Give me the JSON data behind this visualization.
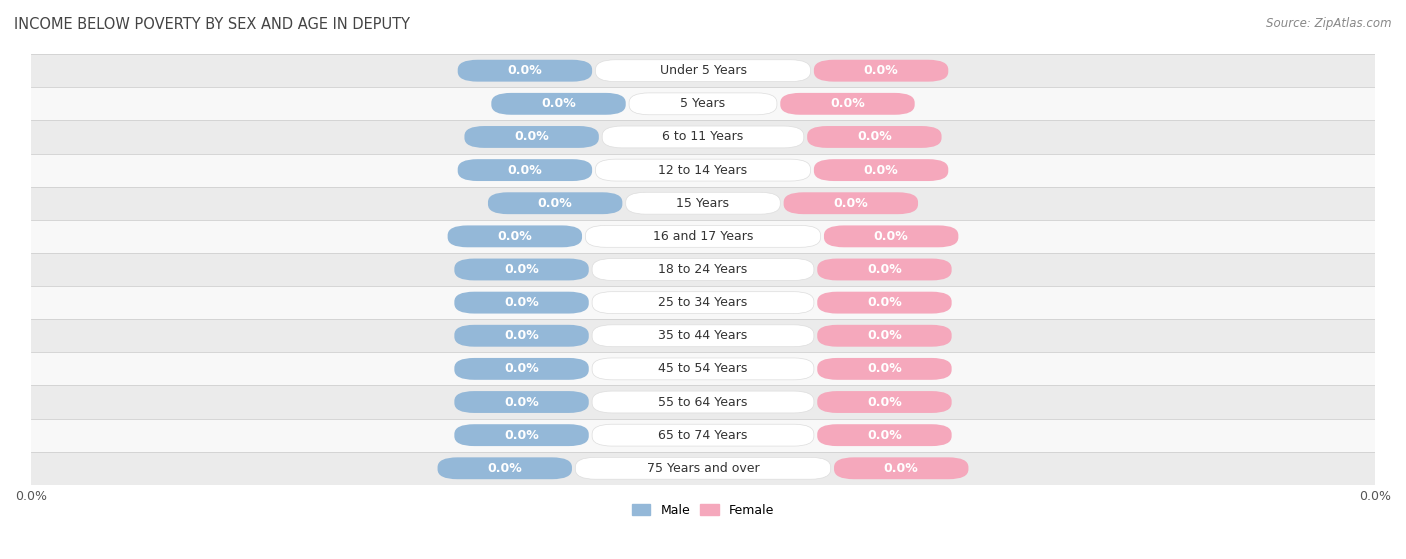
{
  "title": "INCOME BELOW POVERTY BY SEX AND AGE IN DEPUTY",
  "source": "Source: ZipAtlas.com",
  "categories": [
    "Under 5 Years",
    "5 Years",
    "6 to 11 Years",
    "12 to 14 Years",
    "15 Years",
    "16 and 17 Years",
    "18 to 24 Years",
    "25 to 34 Years",
    "35 to 44 Years",
    "45 to 54 Years",
    "55 to 64 Years",
    "65 to 74 Years",
    "75 Years and over"
  ],
  "male_values": [
    0.0,
    0.0,
    0.0,
    0.0,
    0.0,
    0.0,
    0.0,
    0.0,
    0.0,
    0.0,
    0.0,
    0.0,
    0.0
  ],
  "female_values": [
    0.0,
    0.0,
    0.0,
    0.0,
    0.0,
    0.0,
    0.0,
    0.0,
    0.0,
    0.0,
    0.0,
    0.0,
    0.0
  ],
  "male_color": "#94b8d8",
  "female_color": "#f5a8bc",
  "male_label": "Male",
  "female_label": "Female",
  "background_color": "#ffffff",
  "row_bg_light": "#ebebeb",
  "row_bg_white": "#f8f8f8",
  "title_fontsize": 10.5,
  "label_fontsize": 9,
  "cat_fontsize": 9,
  "tick_fontsize": 9,
  "source_fontsize": 8.5
}
